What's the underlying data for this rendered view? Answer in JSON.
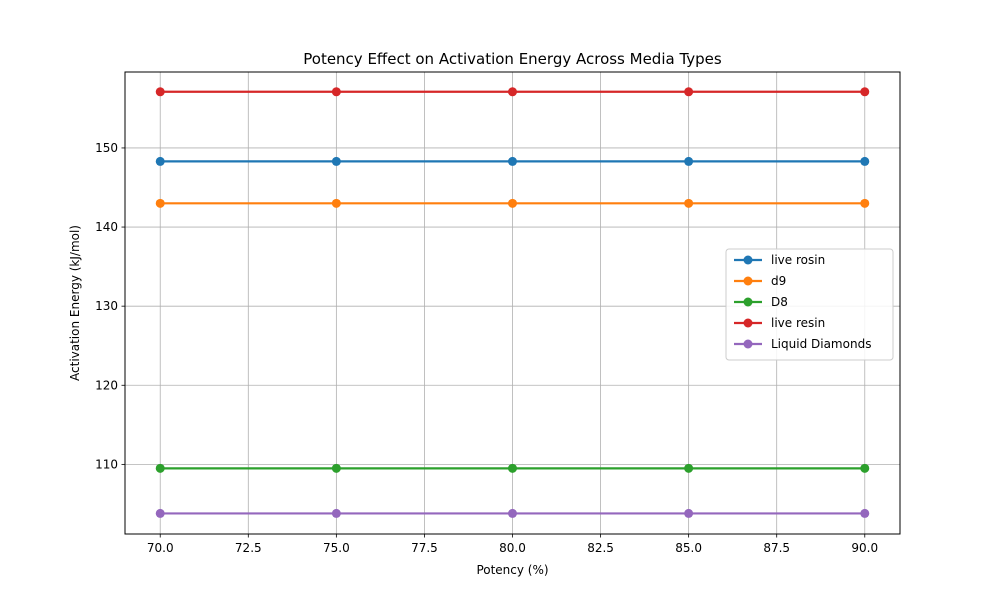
{
  "chart_data": {
    "type": "line",
    "title": "Potency Effect on Activation Energy Across Media Types",
    "xlabel": "Potency (%)",
    "ylabel": "Activation Energy (kJ/mol)",
    "x": [
      70,
      75,
      80,
      85,
      90
    ],
    "xlim": [
      69.0,
      91.0
    ],
    "ylim": [
      101.2,
      159.6
    ],
    "xticks": [
      70.0,
      72.5,
      75.0,
      77.5,
      80.0,
      82.5,
      85.0,
      87.5,
      90.0
    ],
    "xtick_labels": [
      "70.0",
      "72.5",
      "75.0",
      "77.5",
      "80.0",
      "82.5",
      "85.0",
      "87.5",
      "90.0"
    ],
    "yticks": [
      110,
      120,
      130,
      140,
      150
    ],
    "ytick_labels": [
      "110",
      "120",
      "130",
      "140",
      "150"
    ],
    "grid": true,
    "legend_position": "center-right",
    "series": [
      {
        "name": "live rosin",
        "color": "#1f77b4",
        "values": [
          148.3,
          148.3,
          148.3,
          148.3,
          148.3
        ]
      },
      {
        "name": "d9",
        "color": "#ff7f0e",
        "values": [
          143.0,
          143.0,
          143.0,
          143.0,
          143.0
        ]
      },
      {
        "name": "D8",
        "color": "#2ca02c",
        "values": [
          109.5,
          109.5,
          109.5,
          109.5,
          109.5
        ]
      },
      {
        "name": "live resin",
        "color": "#d62728",
        "values": [
          157.1,
          157.1,
          157.1,
          157.1,
          157.1
        ]
      },
      {
        "name": "Liquid Diamonds",
        "color": "#9467bd",
        "values": [
          103.8,
          103.8,
          103.8,
          103.8,
          103.8
        ]
      }
    ]
  }
}
